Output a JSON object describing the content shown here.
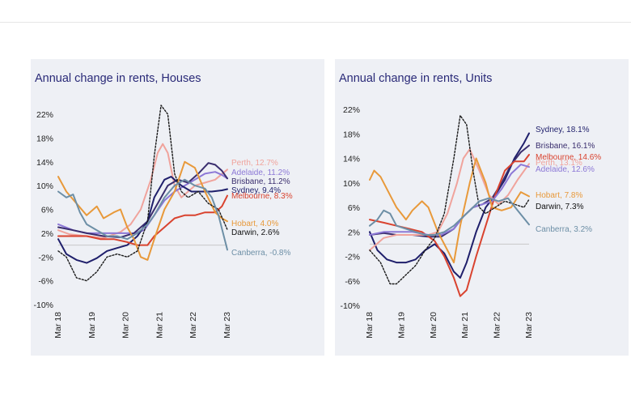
{
  "chart_data": [
    {
      "type": "line",
      "title": "Annual change in rents, Houses",
      "yticks": [
        "22%",
        "18%",
        "14%",
        "10%",
        "6%",
        "2%",
        "-2%",
        "-6%",
        "-10%"
      ],
      "ylim": [
        -10,
        22
      ],
      "xlim": [
        2018.16,
        2023.16
      ],
      "xticks": [
        "Mar 18",
        "Mar 19",
        "Mar 20",
        "Mar 21",
        "Mar 22",
        "Mar 23"
      ],
      "zero_line": true,
      "grid": false,
      "series": [
        {
          "name": "Perth",
          "label": "Perth, 12.7%",
          "color": "#f0a39c",
          "dash": false,
          "x": [
            2018.16,
            2018.5,
            2019.0,
            2019.5,
            2020.0,
            2020.3,
            2020.6,
            2020.9,
            2021.1,
            2021.25,
            2021.4,
            2021.6,
            2021.8,
            2022.0,
            2022.2,
            2022.5,
            2022.8,
            2023.16
          ],
          "y": [
            2.5,
            1.8,
            1.5,
            1.2,
            2.2,
            3.5,
            6.0,
            11.0,
            15.5,
            17.0,
            15.5,
            10.0,
            8.0,
            9.0,
            10.0,
            10.5,
            11.0,
            12.7
          ]
        },
        {
          "name": "Adelaide",
          "label": "Adelaide, 11.2%",
          "color": "#8c78d6",
          "dash": false,
          "x": [
            2018.16,
            2018.6,
            2019.0,
            2019.4,
            2019.8,
            2020.1,
            2020.4,
            2020.7,
            2021.0,
            2021.3,
            2021.6,
            2021.9,
            2022.2,
            2022.5,
            2022.8,
            2023.0,
            2023.16
          ],
          "y": [
            3.5,
            2.5,
            2.0,
            2.0,
            2.0,
            2.0,
            2.0,
            2.5,
            5.0,
            7.5,
            9.0,
            10.0,
            11.0,
            12.0,
            12.3,
            11.8,
            11.2
          ]
        },
        {
          "name": "Brisbane",
          "label": "Brisbane, 11.2%",
          "color": "#3a2e6e",
          "dash": false,
          "x": [
            2018.16,
            2018.6,
            2019.0,
            2019.5,
            2020.0,
            2020.4,
            2020.8,
            2021.1,
            2021.4,
            2021.7,
            2022.0,
            2022.3,
            2022.6,
            2022.8,
            2023.0,
            2023.16
          ],
          "y": [
            3.0,
            2.5,
            2.0,
            1.5,
            1.3,
            2.0,
            4.0,
            7.0,
            10.0,
            11.0,
            10.5,
            12.0,
            13.8,
            13.5,
            12.5,
            11.2
          ]
        },
        {
          "name": "Sydney",
          "label": "Sydney, 9.4%",
          "color": "#1f1f6b",
          "dash": false,
          "x": [
            2018.16,
            2018.4,
            2018.7,
            2019.0,
            2019.3,
            2019.6,
            2019.9,
            2020.2,
            2020.5,
            2020.8,
            2021.0,
            2021.3,
            2021.5,
            2021.8,
            2022.1,
            2022.4,
            2022.7,
            2023.0,
            2023.16
          ],
          "y": [
            1.0,
            -1.5,
            -2.5,
            -3.0,
            -2.2,
            -1.0,
            -0.5,
            0.0,
            1.5,
            4.0,
            8.0,
            11.0,
            11.5,
            10.0,
            9.0,
            9.0,
            9.0,
            9.2,
            9.4
          ]
        },
        {
          "name": "Melbourne",
          "label": "Melbourne, 8.3%",
          "color": "#d9432f",
          "dash": false,
          "x": [
            2018.16,
            2018.6,
            2019.0,
            2019.4,
            2019.8,
            2020.2,
            2020.5,
            2020.8,
            2021.0,
            2021.3,
            2021.6,
            2021.9,
            2022.2,
            2022.5,
            2022.8,
            2023.0,
            2023.16
          ],
          "y": [
            1.5,
            1.5,
            1.5,
            1.0,
            1.0,
            0.5,
            0.0,
            0.0,
            1.5,
            3.0,
            4.5,
            5.0,
            5.0,
            5.5,
            5.5,
            6.5,
            8.3
          ]
        },
        {
          "name": "Hobart",
          "label": "Hobart, 4.0%",
          "color": "#e8993a",
          "dash": false,
          "x": [
            2018.16,
            2018.4,
            2018.7,
            2019.0,
            2019.3,
            2019.5,
            2019.8,
            2020.0,
            2020.2,
            2020.4,
            2020.6,
            2020.8,
            2021.0,
            2021.3,
            2021.6,
            2021.9,
            2022.2,
            2022.5,
            2022.8,
            2023.0,
            2023.16
          ],
          "y": [
            11.5,
            9.0,
            7.0,
            5.0,
            6.5,
            4.5,
            5.5,
            6.0,
            3.0,
            1.0,
            -2.0,
            -2.5,
            1.0,
            6.0,
            9.0,
            14.0,
            13.0,
            9.0,
            5.5,
            4.5,
            4.0
          ]
        },
        {
          "name": "Darwin",
          "label": "Darwin, 2.6%",
          "color": "#1a1a1a",
          "dash": true,
          "x": [
            2018.16,
            2018.4,
            2018.7,
            2019.0,
            2019.3,
            2019.6,
            2019.9,
            2020.2,
            2020.5,
            2020.8,
            2021.0,
            2021.2,
            2021.4,
            2021.6,
            2021.8,
            2022.0,
            2022.3,
            2022.6,
            2022.9,
            2023.16
          ],
          "y": [
            -1.0,
            -2.0,
            -5.5,
            -6.0,
            -4.5,
            -2.0,
            -1.5,
            -2.0,
            -1.0,
            4.0,
            15.0,
            23.5,
            22.0,
            12.0,
            9.0,
            8.0,
            9.0,
            7.0,
            6.0,
            2.6
          ]
        },
        {
          "name": "Canberra",
          "label": "Canberra, -0.8%",
          "color": "#6d8fa6",
          "dash": false,
          "x": [
            2018.16,
            2018.4,
            2018.6,
            2018.8,
            2019.0,
            2019.3,
            2019.6,
            2019.9,
            2020.2,
            2020.5,
            2020.8,
            2021.0,
            2021.3,
            2021.6,
            2021.9,
            2022.2,
            2022.5,
            2022.7,
            2022.9,
            2023.16
          ],
          "y": [
            9.0,
            8.0,
            8.5,
            5.5,
            3.5,
            2.5,
            1.5,
            1.5,
            1.0,
            2.0,
            3.5,
            5.0,
            8.0,
            10.0,
            11.0,
            10.0,
            9.5,
            8.0,
            5.0,
            -0.8
          ]
        }
      ]
    },
    {
      "type": "line",
      "title": "Annual change in rents, Units",
      "yticks": [
        "22%",
        "18%",
        "14%",
        "10%",
        "6%",
        "2%",
        "-2%",
        "-6%",
        "-10%"
      ],
      "ylim": [
        -10,
        22
      ],
      "xlim": [
        2018.16,
        2023.16
      ],
      "xticks": [
        "Mar 18",
        "Mar 19",
        "Mar 20",
        "Mar 21",
        "Mar 22",
        "Mar 23"
      ],
      "zero_line": true,
      "grid": false,
      "series": [
        {
          "name": "Sydney",
          "label": "Sydney, 18.1%",
          "color": "#1f1f6b",
          "dash": false,
          "x": [
            2018.16,
            2018.4,
            2018.7,
            2019.0,
            2019.3,
            2019.6,
            2019.9,
            2020.2,
            2020.5,
            2020.8,
            2021.0,
            2021.2,
            2021.5,
            2021.8,
            2022.1,
            2022.4,
            2022.7,
            2023.0,
            2023.16
          ],
          "y": [
            2.0,
            -1.0,
            -2.5,
            -3.0,
            -3.0,
            -2.5,
            -1.0,
            0.0,
            -1.5,
            -4.5,
            -5.5,
            -3.0,
            2.0,
            6.0,
            8.0,
            10.5,
            14.0,
            16.5,
            18.1
          ]
        },
        {
          "name": "Brisbane",
          "label": "Brisbane, 16.1%",
          "color": "#3a2e6e",
          "dash": false,
          "x": [
            2018.16,
            2018.6,
            2019.0,
            2019.5,
            2020.0,
            2020.4,
            2020.8,
            2021.1,
            2021.4,
            2021.7,
            2022.0,
            2022.3,
            2022.6,
            2022.9,
            2023.16
          ],
          "y": [
            1.5,
            1.8,
            1.5,
            1.5,
            1.2,
            1.2,
            2.5,
            4.5,
            6.0,
            6.5,
            7.5,
            10.0,
            13.0,
            15.0,
            16.1
          ]
        },
        {
          "name": "Melbourne",
          "label": "Melbourne, 14.6%",
          "color": "#d9432f",
          "dash": false,
          "x": [
            2018.16,
            2018.6,
            2019.0,
            2019.4,
            2019.8,
            2020.2,
            2020.5,
            2020.8,
            2021.0,
            2021.2,
            2021.5,
            2021.8,
            2022.1,
            2022.4,
            2022.7,
            2023.0,
            2023.16
          ],
          "y": [
            4.0,
            3.5,
            3.0,
            2.5,
            2.0,
            0.5,
            -2.0,
            -5.5,
            -8.5,
            -7.5,
            -2.0,
            3.0,
            8.0,
            12.0,
            13.5,
            13.5,
            14.6
          ]
        },
        {
          "name": "Perth",
          "label": "Perth, 13.1%",
          "color": "#f0a39c",
          "dash": false,
          "x": [
            2018.16,
            2018.6,
            2019.0,
            2019.5,
            2020.0,
            2020.3,
            2020.6,
            2020.9,
            2021.1,
            2021.3,
            2021.6,
            2021.9,
            2022.2,
            2022.5,
            2022.8,
            2023.16
          ],
          "y": [
            -1.0,
            1.0,
            1.5,
            1.5,
            1.5,
            2.0,
            5.0,
            10.0,
            14.0,
            15.5,
            12.0,
            8.0,
            6.5,
            8.0,
            10.5,
            13.1
          ]
        },
        {
          "name": "Adelaide",
          "label": "Adelaide, 12.6%",
          "color": "#8c78d6",
          "dash": false,
          "x": [
            2018.16,
            2018.6,
            2019.0,
            2019.5,
            2020.0,
            2020.4,
            2020.8,
            2021.1,
            2021.4,
            2021.7,
            2022.0,
            2022.3,
            2022.6,
            2022.9,
            2023.16
          ],
          "y": [
            1.5,
            2.0,
            2.0,
            2.0,
            1.5,
            1.5,
            2.5,
            4.5,
            6.0,
            6.5,
            7.0,
            9.0,
            11.5,
            13.0,
            12.6
          ]
        },
        {
          "name": "Hobart",
          "label": "Hobart, 7.8%",
          "color": "#e8993a",
          "dash": false,
          "x": [
            2018.16,
            2018.3,
            2018.5,
            2018.8,
            2019.0,
            2019.3,
            2019.5,
            2019.8,
            2020.0,
            2020.3,
            2020.6,
            2020.8,
            2021.0,
            2021.3,
            2021.5,
            2021.8,
            2022.0,
            2022.3,
            2022.6,
            2022.9,
            2023.16
          ],
          "y": [
            10.5,
            12.0,
            11.0,
            8.0,
            6.0,
            4.0,
            5.5,
            7.0,
            6.0,
            2.0,
            -1.0,
            -3.0,
            3.0,
            10.0,
            14.0,
            10.0,
            6.0,
            5.5,
            6.0,
            8.5,
            7.8
          ]
        },
        {
          "name": "Darwin",
          "label": "Darwin, 7.3%",
          "color": "#1a1a1a",
          "dash": true,
          "x": [
            2018.16,
            2018.5,
            2018.8,
            2019.0,
            2019.3,
            2019.6,
            2019.9,
            2020.2,
            2020.5,
            2020.8,
            2021.0,
            2021.2,
            2021.4,
            2021.6,
            2021.8,
            2022.1,
            2022.4,
            2022.7,
            2023.0,
            2023.16
          ],
          "y": [
            -1.0,
            -3.0,
            -6.5,
            -6.5,
            -5.0,
            -3.5,
            -1.0,
            1.0,
            5.0,
            14.0,
            21.0,
            19.5,
            12.0,
            6.0,
            5.0,
            6.0,
            7.0,
            6.5,
            6.0,
            7.3
          ]
        },
        {
          "name": "Canberra",
          "label": "Canberra, 3.2%",
          "color": "#6d8fa6",
          "dash": false,
          "x": [
            2018.16,
            2018.4,
            2018.6,
            2018.8,
            2019.0,
            2019.3,
            2019.6,
            2019.9,
            2020.2,
            2020.5,
            2020.8,
            2021.0,
            2021.3,
            2021.6,
            2021.9,
            2022.2,
            2022.5,
            2022.8,
            2023.16
          ],
          "y": [
            3.0,
            4.0,
            5.5,
            5.0,
            3.0,
            2.5,
            2.0,
            1.5,
            1.5,
            2.0,
            3.0,
            4.0,
            5.5,
            7.0,
            7.5,
            7.0,
            7.5,
            5.5,
            3.2
          ]
        }
      ]
    }
  ]
}
